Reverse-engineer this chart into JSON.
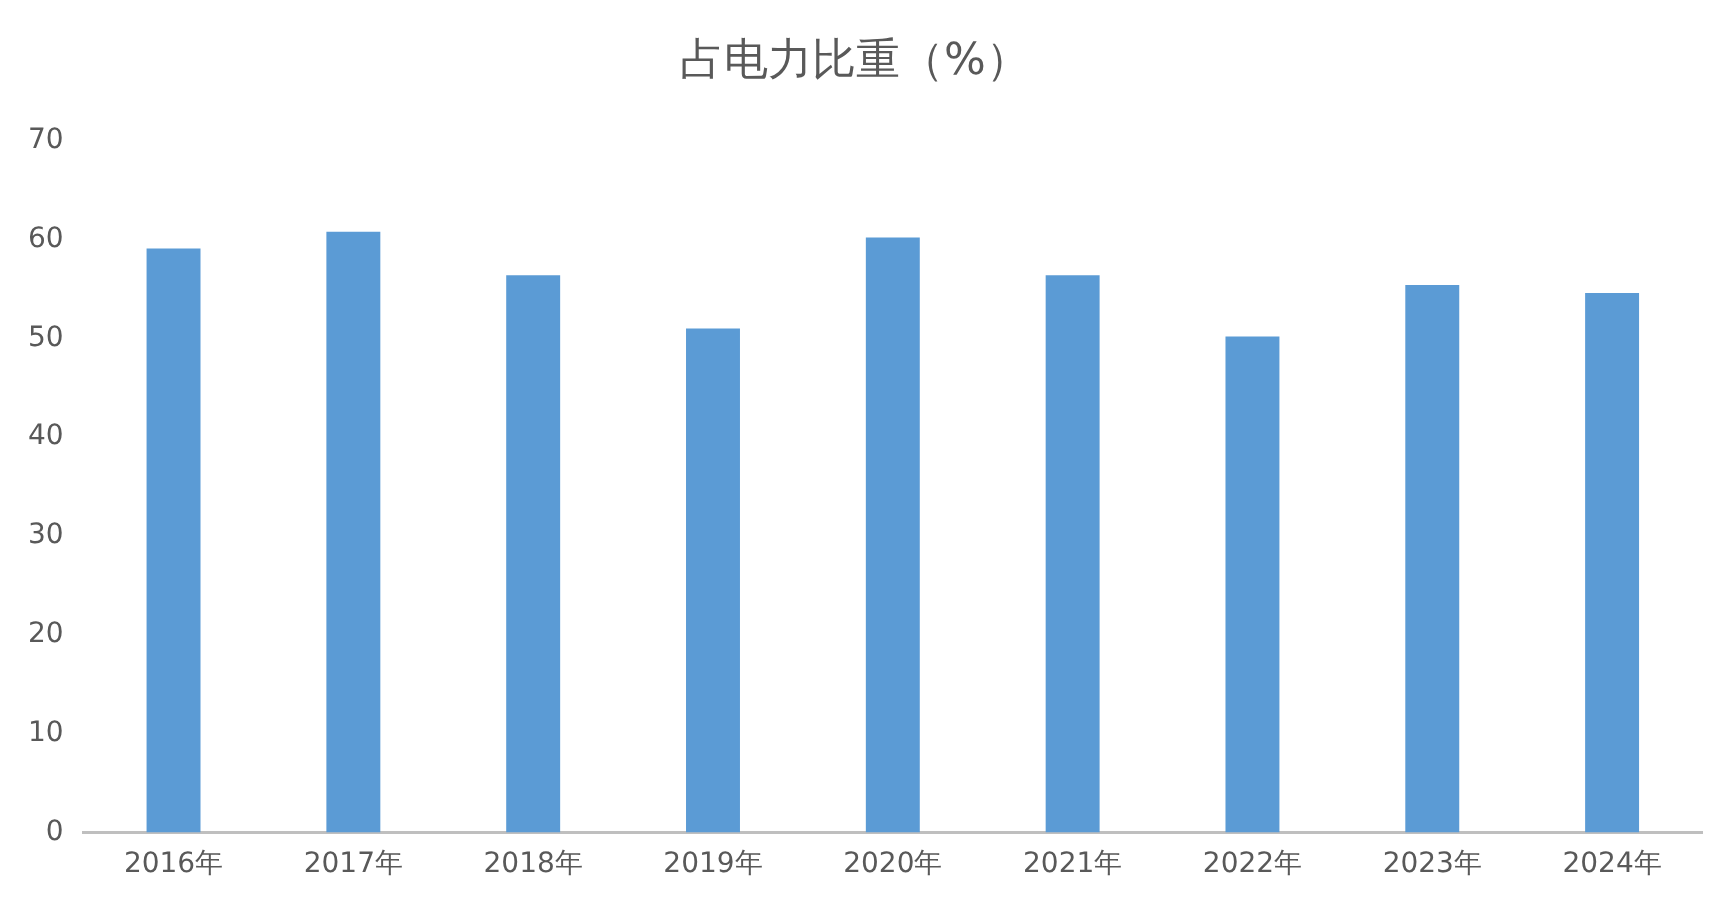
{
  "chart_data": {
    "type": "bar",
    "title": "占电力比重（%）",
    "categories": [
      "2016年",
      "2017年",
      "2018年",
      "2019年",
      "2020年",
      "2021年",
      "2022年",
      "2023年",
      "2024年"
    ],
    "values": [
      59.1,
      60.8,
      56.4,
      51.0,
      60.2,
      56.4,
      50.2,
      55.4,
      54.6
    ],
    "color": "#5b9bd5",
    "ylim": [
      0,
      70
    ],
    "yticks": [
      0,
      10,
      20,
      30,
      40,
      50,
      60,
      70
    ],
    "grid": false
  }
}
